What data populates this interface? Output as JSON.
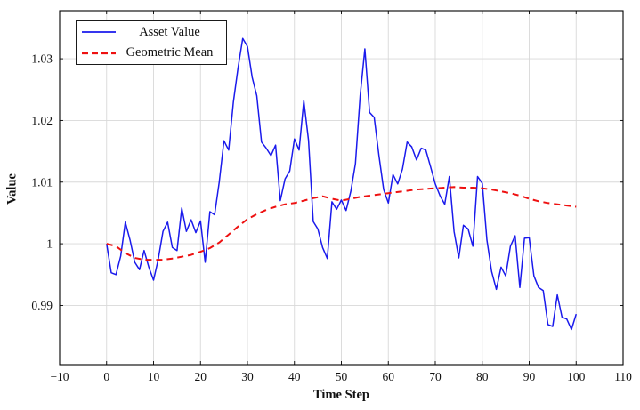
{
  "figure": {
    "background": "#ffffff",
    "colors": {
      "grid": "#d8d8d8",
      "axis": "#000000",
      "tick_text": "#111111"
    },
    "legend": {
      "position": "north west",
      "border_color": "#1a1a1a"
    }
  },
  "chart_data": {
    "type": "line",
    "title": "",
    "xlabel": "Time Step",
    "ylabel": "Value",
    "xlim": [
      -10,
      110
    ],
    "ylim": [
      0.9804,
      1.0378
    ],
    "grid": true,
    "xticks": [
      -10,
      0,
      10,
      20,
      30,
      40,
      50,
      60,
      70,
      80,
      90,
      100,
      110
    ],
    "xtick_labels": [
      "−10",
      "0",
      "10",
      "20",
      "30",
      "40",
      "50",
      "60",
      "70",
      "80",
      "90",
      "100",
      "110"
    ],
    "yticks": [
      0.99,
      1.0,
      1.01,
      1.02,
      1.03
    ],
    "ytick_labels": [
      "0.99",
      "1",
      "1.01",
      "1.02",
      "1.03"
    ],
    "series": [
      {
        "name": "Asset Value",
        "color": "#1a1aec",
        "style": "solid",
        "width": 1.5,
        "x0": 0,
        "dx": 1,
        "values": [
          1.0,
          0.9953,
          0.995,
          0.998,
          1.0035,
          1.0006,
          0.997,
          0.9958,
          0.9989,
          0.9962,
          0.9941,
          0.9975,
          1.002,
          1.0035,
          0.9994,
          0.9989,
          1.0058,
          1.002,
          1.0039,
          1.0018,
          1.0037,
          0.997,
          1.0052,
          1.0047,
          1.01,
          1.0167,
          1.0152,
          1.023,
          1.0285,
          1.0333,
          1.032,
          1.027,
          1.024,
          1.0165,
          1.0155,
          1.0143,
          1.016,
          1.007,
          1.0105,
          1.0118,
          1.017,
          1.0152,
          1.0232,
          1.0168,
          1.0036,
          1.0024,
          0.9994,
          0.9976,
          1.0068,
          1.0056,
          1.0071,
          1.0054,
          1.0085,
          1.013,
          1.024,
          1.0316,
          1.0213,
          1.0205,
          1.0143,
          1.0088,
          1.0066,
          1.0112,
          1.0097,
          1.0121,
          1.0165,
          1.0157,
          1.0136,
          1.0155,
          1.0152,
          1.0125,
          1.0097,
          1.0078,
          1.0064,
          1.0109,
          1.002,
          0.9977,
          1.003,
          1.0024,
          0.9996,
          1.0109,
          1.0098,
          1.0006,
          0.9955,
          0.9926,
          0.9962,
          0.9948,
          0.9996,
          1.0013,
          0.9929,
          1.0009,
          1.001,
          0.9948,
          0.9929,
          0.9924,
          0.9869,
          0.9866,
          0.9917,
          0.9881,
          0.9878,
          0.9861,
          0.9886
        ]
      },
      {
        "name": "Geometric Mean",
        "color": "#ee1111",
        "style": "dashed",
        "width": 2,
        "x0": 0,
        "dx": 2,
        "values": [
          1.0,
          0.9996,
          0.9985,
          0.9977,
          0.9974,
          0.9974,
          0.9974,
          0.9976,
          0.9979,
          0.9982,
          0.9987,
          0.9993,
          1.0002,
          1.0015,
          1.0028,
          1.004,
          1.0048,
          1.0055,
          1.006,
          1.0064,
          1.0066,
          1.007,
          1.0074,
          1.0077,
          1.0073,
          1.007,
          1.0073,
          1.0076,
          1.0078,
          1.008,
          1.0082,
          1.0084,
          1.0086,
          1.0088,
          1.0089,
          1.009,
          1.0091,
          1.0092,
          1.0091,
          1.0091,
          1.009,
          1.0088,
          1.0085,
          1.0082,
          1.0078,
          1.0073,
          1.0069,
          1.0066,
          1.0064,
          1.0062,
          1.006
        ]
      }
    ]
  }
}
